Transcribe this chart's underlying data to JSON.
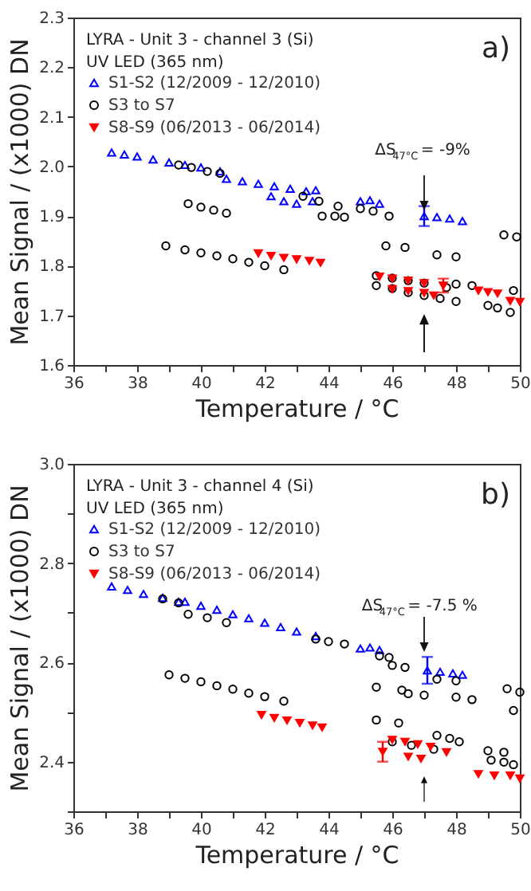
{
  "chart_data": [
    {
      "type": "scatter",
      "xlabel": "Temperature / °C",
      "ylabel": "Mean Signal / (x1000) DN",
      "xlim": [
        36,
        50
      ],
      "ylim": [
        1.6,
        2.3
      ],
      "xticks": [
        36,
        {
          "value": 37,
          "label": null
        },
        38,
        {
          "value": 39,
          "label": null
        },
        40,
        {
          "value": 41,
          "label": null
        },
        42,
        {
          "value": 43,
          "label": null
        },
        44,
        {
          "value": 45,
          "label": null
        },
        46,
        {
          "value": 47,
          "label": null
        },
        48,
        {
          "value": 49,
          "label": null
        },
        50
      ],
      "yticks": [
        {
          "value": 1.6,
          "label": "1.6"
        },
        {
          "value": 1.7,
          "label": "1.7"
        },
        {
          "value": 1.8,
          "label": "1.8"
        },
        {
          "value": 1.9,
          "label": "1.9"
        },
        {
          "value": 2,
          "label": "2.0"
        },
        {
          "value": 2.1,
          "label": "2.1"
        },
        {
          "value": 2.2,
          "label": "2.2"
        },
        {
          "value": 2.3,
          "label": "2.3"
        }
      ],
      "legend": "top left",
      "annotations": [
        "LYRA - Unit 3 - channel 3 (Si)",
        "UV LED (365 nm)",
        "a)",
        "ΔS$_{47°C}$ = -9%"
      ],
      "series": [
        {
          "name": "S1-S2 (12/2009 - 12/2010)",
          "color": "#0000ff",
          "marker": "triangle",
          "x": [
            47.0,
            37.2,
            37.6,
            38.0,
            38.5,
            39.0,
            39.5,
            40.0,
            40.6,
            40.8,
            41.3,
            41.8,
            42.3,
            42.8,
            43.3,
            43.6,
            42.2,
            42.6,
            43.0,
            43.5,
            45.0,
            45.3,
            45.6,
            47.4,
            47.8,
            48.2
          ],
          "values": [
            1.9,
            2.028,
            2.024,
            2.02,
            2.014,
            2.008,
            2.003,
            1.998,
            1.99,
            1.975,
            1.97,
            1.965,
            1.96,
            1.955,
            1.95,
            1.952,
            1.94,
            1.93,
            1.925,
            1.93,
            1.93,
            1.932,
            1.925,
            1.898,
            1.895,
            1.89
          ],
          "errors": [
            0.02,
            null,
            null,
            null,
            null,
            null,
            null,
            null,
            null,
            null,
            null,
            null,
            null,
            null,
            null,
            null,
            null,
            null,
            null,
            null,
            null,
            null,
            null,
            null,
            null,
            null
          ]
        },
        {
          "name": "S3 to S7",
          "color": "#000000",
          "marker": "circle",
          "x": [
            39.3,
            39.7,
            40.2,
            40.6,
            39.6,
            40.0,
            40.4,
            40.8,
            43.2,
            43.7,
            44.3,
            43.8,
            44.2,
            44.5,
            45.0,
            45.4,
            45.9,
            38.9,
            39.5,
            40.0,
            40.5,
            41.0,
            41.5,
            42.0,
            42.6,
            45.8,
            46.4,
            47.4,
            48.0,
            45.5,
            46.0,
            46.5,
            47.0,
            47.7,
            45.5,
            46.0,
            46.5,
            47.0,
            47.5,
            48.0,
            48.0,
            48.5,
            49.0,
            49.3,
            49.7,
            49.5,
            49.9,
            49.8
          ],
          "values": [
            2.003,
            1.998,
            1.99,
            1.986,
            1.925,
            1.918,
            1.912,
            1.906,
            1.94,
            1.93,
            1.92,
            1.9,
            1.9,
            1.898,
            1.915,
            1.91,
            1.9,
            1.84,
            1.832,
            1.826,
            1.82,
            1.814,
            1.807,
            1.8,
            1.792,
            1.84,
            1.837,
            1.822,
            1.818,
            1.78,
            1.775,
            1.77,
            1.765,
            1.756,
            1.76,
            1.754,
            1.746,
            1.74,
            1.734,
            1.728,
            1.763,
            1.76,
            1.72,
            1.715,
            1.706,
            1.862,
            1.858,
            1.75
          ]
        },
        {
          "name": "S8-S9 (06/2013 - 06/2014)",
          "color": "#ff0000",
          "marker": "triangle-down",
          "x": [
            47.6,
            41.8,
            42.2,
            42.6,
            43.0,
            43.4,
            43.75,
            45.6,
            46.0,
            46.5,
            47.0,
            46.0,
            46.5,
            47.0,
            47.3,
            48.7,
            49.0,
            49.3,
            49.7,
            50.0
          ],
          "values": [
            1.76,
            1.825,
            1.82,
            1.816,
            1.813,
            1.81,
            1.806,
            1.778,
            1.774,
            1.77,
            1.765,
            1.753,
            1.749,
            1.745,
            1.74,
            1.75,
            1.747,
            1.744,
            1.729,
            1.727
          ],
          "errors": [
            0.014,
            null,
            null,
            null,
            null,
            null,
            null,
            null,
            null,
            null,
            null,
            null,
            null,
            null,
            null,
            null,
            null,
            null,
            null,
            null
          ]
        }
      ]
    },
    {
      "type": "scatter",
      "xlabel": "Temperature / °C",
      "ylabel": "Mean Signal / (x1000) DN",
      "xlim": [
        36,
        50
      ],
      "ylim": [
        2.3,
        3.0
      ],
      "xticks": [
        36,
        {
          "value": 37,
          "label": null
        },
        38,
        {
          "value": 39,
          "label": null
        },
        40,
        {
          "value": 41,
          "label": null
        },
        42,
        {
          "value": 43,
          "label": null
        },
        44,
        {
          "value": 45,
          "label": null
        },
        46,
        {
          "value": 47,
          "label": null
        },
        48,
        {
          "value": 49,
          "label": null
        },
        50
      ],
      "yticks": [
        {
          "value": 2.3,
          "label": null
        },
        {
          "value": 2.4,
          "label": "2.4"
        },
        {
          "value": 2.5,
          "label": null
        },
        {
          "value": 2.6,
          "label": "2.6"
        },
        {
          "value": 2.7,
          "label": null
        },
        {
          "value": 2.8,
          "label": "2.8"
        },
        {
          "value": 2.9,
          "label": null
        },
        {
          "value": 3,
          "label": "3.0"
        }
      ],
      "legend": "top left",
      "annotations": [
        "LYRA - Unit 3 - channel 4 (Si)",
        "UV LED (365 nm)",
        "b)",
        "ΔS$_{47°C}$ = -7.5 %"
      ],
      "series": [
        {
          "name": "S1-S2 (12/2009 - 12/2010)",
          "color": "#0000ff",
          "marker": "triangle",
          "x": [
            47.1,
            37.2,
            37.7,
            38.2,
            38.8,
            39.3,
            39.5,
            40.0,
            40.5,
            41.0,
            41.5,
            42.0,
            42.5,
            43.0,
            43.6,
            45.0,
            45.3,
            45.6,
            47.5,
            47.9,
            48.2
          ],
          "values": [
            2.584,
            2.753,
            2.746,
            2.738,
            2.73,
            2.722,
            2.722,
            2.714,
            2.706,
            2.697,
            2.689,
            2.68,
            2.671,
            2.662,
            2.653,
            2.628,
            2.63,
            2.625,
            2.581,
            2.578,
            2.575
          ],
          "errors": [
            0.027,
            null,
            null,
            null,
            null,
            null,
            null,
            null,
            null,
            null,
            null,
            null,
            null,
            null,
            null,
            null,
            null,
            null,
            null,
            null,
            null
          ]
        },
        {
          "name": "S3 to S7",
          "color": "#000000",
          "marker": "circle",
          "x": [
            38.8,
            39.3,
            39.6,
            40.2,
            40.8,
            43.6,
            44.0,
            44.5,
            45.6,
            45.9,
            46.0,
            46.4,
            47.4,
            48.0,
            39.0,
            39.5,
            40.0,
            40.5,
            41.0,
            41.5,
            42.0,
            42.6,
            45.5,
            46.3,
            46.5,
            47.0,
            48.0,
            48.5,
            45.5,
            46.2,
            47.4,
            47.8,
            48.1,
            46.0,
            46.6,
            47.3,
            49.0,
            49.5,
            49.1,
            49.5,
            49.8,
            49.6,
            50.0,
            49.8
          ],
          "values": [
            2.728,
            2.72,
            2.697,
            2.69,
            2.68,
            2.647,
            2.642,
            2.637,
            2.613,
            2.61,
            2.594,
            2.59,
            2.566,
            2.563,
            2.575,
            2.568,
            2.561,
            2.553,
            2.546,
            2.538,
            2.531,
            2.522,
            2.55,
            2.544,
            2.537,
            2.534,
            2.53,
            2.525,
            2.484,
            2.478,
            2.453,
            2.447,
            2.44,
            2.44,
            2.433,
            2.425,
            2.422,
            2.419,
            2.403,
            2.399,
            2.394,
            2.547,
            2.54,
            2.503
          ]
        },
        {
          "name": "S8-S9 (06/2013 - 06/2014)",
          "color": "#ff0000",
          "marker": "triangle-down",
          "x": [
            45.7,
            41.9,
            42.3,
            42.7,
            43.1,
            43.5,
            43.8,
            46.0,
            46.4,
            46.8,
            47.2,
            47.7,
            46.5,
            46.9,
            48.7,
            49.2,
            49.7,
            50.0
          ],
          "values": [
            2.42,
            2.494,
            2.488,
            2.483,
            2.478,
            2.473,
            2.469,
            2.444,
            2.44,
            2.435,
            2.43,
            2.419,
            2.41,
            2.406,
            2.375,
            2.372,
            2.372,
            2.366
          ],
          "errors": [
            0.02,
            null,
            null,
            null,
            null,
            null,
            null,
            null,
            null,
            null,
            null,
            null,
            null,
            null,
            null,
            null,
            null,
            null
          ]
        }
      ]
    }
  ]
}
